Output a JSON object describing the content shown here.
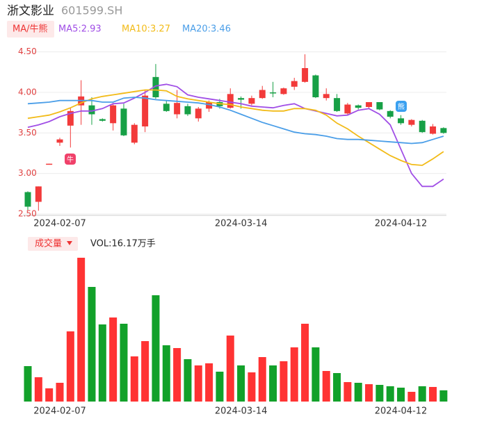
{
  "header": {
    "title": "浙文影业",
    "code": "601599.SH"
  },
  "chart_data": [
    {
      "type": "candlestick",
      "legend_label": "MA/牛熊",
      "categories": [
        null,
        null,
        null,
        "2024-02-07",
        null,
        null,
        null,
        null,
        null,
        null,
        null,
        null,
        null,
        null,
        null,
        null,
        null,
        null,
        null,
        null,
        "2024-03-14",
        null,
        null,
        null,
        null,
        null,
        null,
        null,
        null,
        null,
        null,
        null,
        null,
        null,
        null,
        "2024-04-12",
        null,
        null,
        null,
        null
      ],
      "open": [
        2.77,
        2.65,
        3.11,
        3.38,
        3.59,
        3.84,
        3.84,
        3.67,
        3.62,
        3.8,
        3.38,
        3.58,
        4.19,
        3.86,
        3.73,
        3.83,
        3.68,
        3.8,
        3.88,
        3.81,
        3.93,
        3.86,
        3.93,
        4.0,
        3.98,
        4.07,
        4.13,
        4.21,
        3.93,
        3.93,
        3.74,
        3.84,
        3.82,
        3.88,
        3.77,
        3.68,
        3.6,
        3.65,
        3.49,
        3.56
      ],
      "high": [
        2.78,
        2.84,
        3.12,
        3.44,
        3.81,
        4.15,
        3.94,
        3.68,
        3.87,
        3.86,
        3.62,
        4.03,
        4.35,
        3.9,
        4.03,
        3.86,
        3.82,
        3.9,
        3.92,
        4.05,
        3.95,
        3.96,
        4.08,
        4.13,
        4.06,
        4.18,
        4.47,
        4.22,
        4.05,
        3.98,
        3.87,
        3.85,
        3.88,
        3.88,
        3.78,
        3.72,
        3.67,
        3.66,
        3.61,
        3.57
      ],
      "low": [
        2.55,
        2.54,
        3.11,
        3.34,
        3.32,
        3.6,
        3.6,
        3.64,
        3.53,
        3.46,
        3.36,
        3.51,
        3.92,
        3.76,
        3.68,
        3.71,
        3.64,
        3.76,
        3.8,
        3.8,
        3.8,
        3.84,
        3.92,
        3.94,
        3.97,
        4.03,
        4.12,
        3.93,
        3.9,
        3.76,
        3.72,
        3.79,
        3.8,
        3.78,
        3.68,
        3.6,
        3.58,
        3.5,
        3.48,
        3.49
      ],
      "close": [
        2.59,
        2.84,
        3.12,
        3.42,
        3.77,
        3.95,
        3.73,
        3.65,
        3.84,
        3.47,
        3.6,
        3.96,
        3.94,
        3.77,
        3.87,
        3.73,
        3.8,
        3.88,
        3.83,
        3.98,
        3.91,
        3.93,
        4.03,
        3.99,
        4.05,
        4.14,
        4.3,
        3.94,
        3.98,
        3.77,
        3.85,
        3.81,
        3.88,
        3.79,
        3.7,
        3.62,
        3.66,
        3.51,
        3.58,
        3.5
      ],
      "up_color": "#f23a3a",
      "down_color": "#17a046",
      "ylim": [
        2.5,
        4.6
      ],
      "yticks": [
        {
          "value": 2.5,
          "label": "2.50"
        },
        {
          "value": 3,
          "label": "3.00"
        },
        {
          "value": 3.5,
          "label": "3.50"
        },
        {
          "value": 4,
          "label": "4.00"
        },
        {
          "value": 4.5,
          "label": "4.50"
        }
      ],
      "grid": true,
      "series": [
        {
          "name": "MA5:2.93",
          "color": "#a04ee6",
          "values": [
            3.57,
            3.6,
            3.64,
            3.7,
            3.74,
            3.77,
            3.77,
            3.8,
            3.86,
            3.87,
            3.93,
            4.0,
            4.08,
            4.1,
            4.07,
            3.97,
            3.94,
            3.92,
            3.9,
            3.88,
            3.86,
            3.83,
            3.82,
            3.81,
            3.84,
            3.86,
            3.8,
            3.77,
            3.74,
            3.71,
            3.72,
            3.78,
            3.8,
            3.73,
            3.6,
            3.3,
            3.0,
            2.84,
            2.84,
            2.93
          ]
        },
        {
          "name": "MA10:3.27",
          "color": "#f2bb18",
          "values": [
            3.68,
            3.7,
            3.72,
            3.76,
            3.81,
            3.87,
            3.92,
            3.95,
            3.97,
            3.99,
            4.01,
            4.03,
            4.03,
            4.02,
            3.95,
            3.92,
            3.9,
            3.88,
            3.86,
            3.85,
            3.82,
            3.8,
            3.78,
            3.77,
            3.77,
            3.8,
            3.8,
            3.78,
            3.72,
            3.62,
            3.55,
            3.46,
            3.38,
            3.3,
            3.22,
            3.16,
            3.11,
            3.1,
            3.18,
            3.27
          ]
        },
        {
          "name": "MA20:3.46",
          "color": "#4a9ee8",
          "values": [
            3.86,
            3.87,
            3.88,
            3.9,
            3.9,
            3.9,
            3.9,
            3.88,
            3.88,
            3.93,
            3.94,
            3.93,
            3.91,
            3.9,
            3.89,
            3.88,
            3.87,
            3.85,
            3.82,
            3.78,
            3.73,
            3.68,
            3.63,
            3.59,
            3.55,
            3.51,
            3.49,
            3.48,
            3.46,
            3.43,
            3.42,
            3.42,
            3.41,
            3.4,
            3.39,
            3.38,
            3.37,
            3.38,
            3.42,
            3.46
          ]
        }
      ],
      "signals": [
        {
          "label": "牛"
        },
        {
          "label": "熊"
        }
      ]
    },
    {
      "type": "bar",
      "title": "成交量",
      "value_text": "VOL:16.17万手",
      "categories": [
        null,
        null,
        null,
        "2024-02-07",
        null,
        null,
        null,
        null,
        null,
        null,
        null,
        null,
        null,
        null,
        null,
        null,
        null,
        null,
        null,
        null,
        "2024-03-14",
        null,
        null,
        null,
        null,
        null,
        null,
        null,
        null,
        null,
        null,
        null,
        null,
        null,
        null,
        "2024-04-12",
        null,
        null,
        null,
        null
      ],
      "values": [
        51,
        35,
        19,
        27,
        101,
        207,
        165,
        111,
        121,
        112,
        65,
        87,
        153,
        81,
        77,
        61,
        52,
        55,
        43,
        95,
        52,
        42,
        64,
        52,
        58,
        78,
        112,
        78,
        44,
        41,
        28,
        27,
        25,
        24,
        22,
        20,
        14,
        22,
        21,
        16.17
      ],
      "ylim": [
        0,
        215
      ]
    }
  ]
}
